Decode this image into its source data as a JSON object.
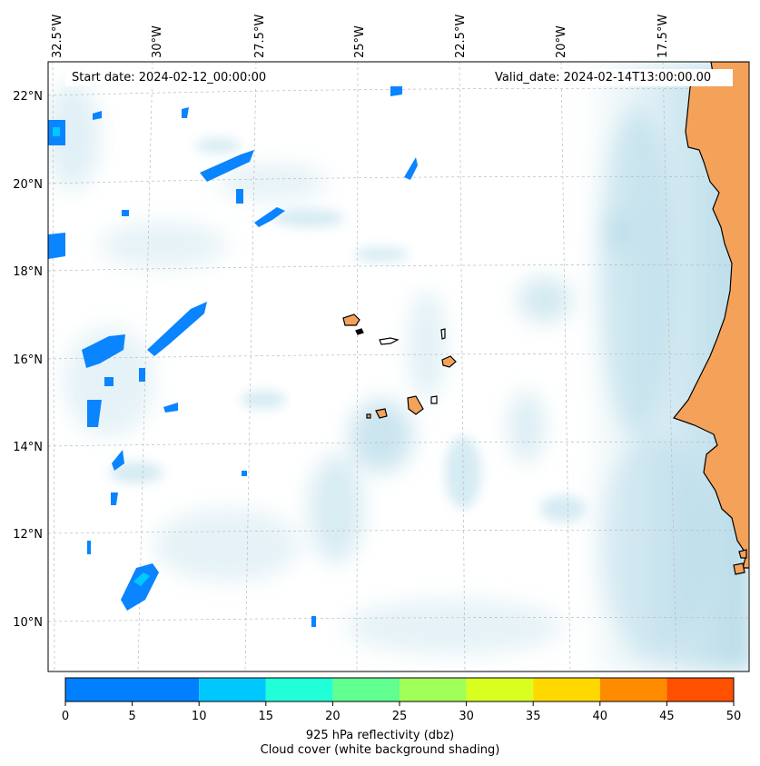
{
  "header": {
    "start_date": "Start date: 2024-02-12_00:00:00",
    "valid_date": "Valid_date: 2024-02-14T13:00:00.00"
  },
  "longitude_labels": [
    "32.5°W",
    "30°W",
    "27.5°W",
    "25°W",
    "22.5°W",
    "20°W",
    "17.5°W"
  ],
  "latitude_labels": [
    "22°N",
    "20°N",
    "18°N",
    "16°N",
    "14°N",
    "12°N",
    "10°N"
  ],
  "colorbar": {
    "ticks": [
      "0",
      "5",
      "10",
      "15",
      "20",
      "25",
      "30",
      "35",
      "40",
      "45",
      "50"
    ],
    "colors": [
      "#0080ff",
      "#00c8ff",
      "#20ffd8",
      "#60ff90",
      "#a0ff58",
      "#d8ff20",
      "#ffd800",
      "#ff8c00",
      "#ff5000"
    ],
    "label": "925 hPa reflectivity (dbz)",
    "sublabel": "Cloud cover (white background shading)"
  },
  "colors": {
    "land": "#f4a25a",
    "cloud": "#a8d4e4",
    "reflectivity_low": "#0a84ff"
  }
}
